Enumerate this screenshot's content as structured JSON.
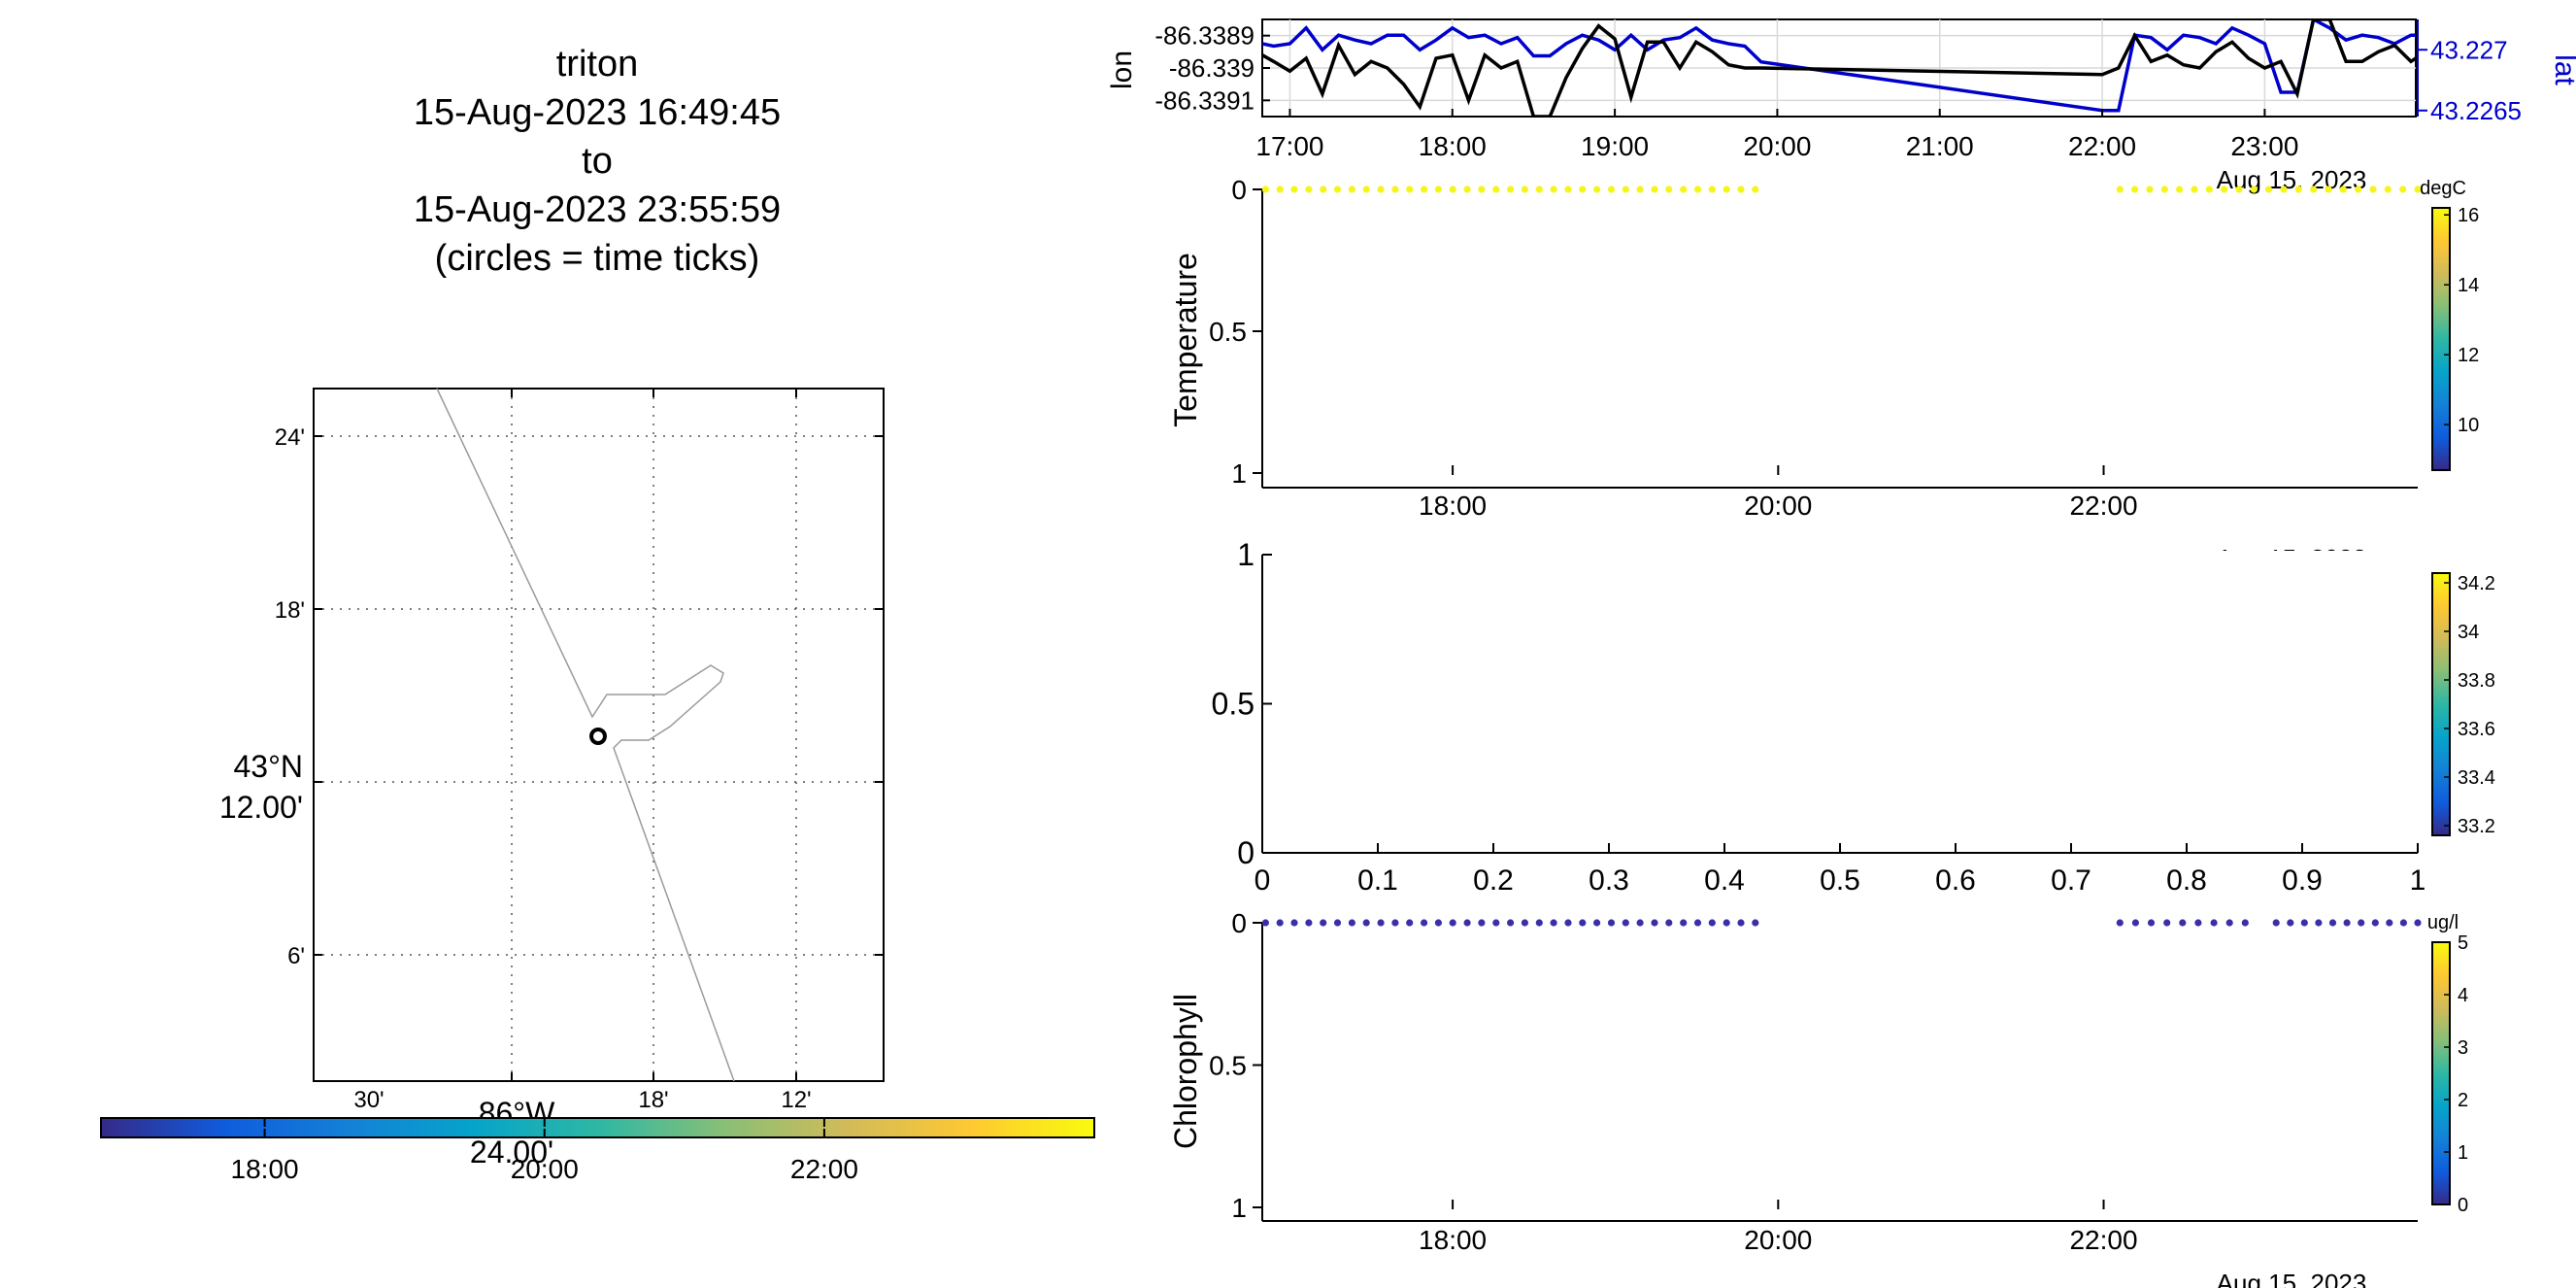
{
  "title": {
    "line1": "triton",
    "line2": "15-Aug-2023 16:49:45",
    "line3": "to",
    "line4": "15-Aug-2023 23:55:59",
    "line5": "(circles = time ticks)"
  },
  "colors": {
    "lon": "#000000",
    "lat": "#0000cc",
    "temperature_dots": "#f5f51a",
    "chlorophyll_dots": "#3b2fa8",
    "parula": [
      "#352a87",
      "#0f5cdd",
      "#1481d6",
      "#06a4ca",
      "#2eb7a4",
      "#87bf77",
      "#d1bb59",
      "#fec832",
      "#f9fb0e"
    ]
  },
  "map": {
    "lat_labels": [
      "24'",
      "18'",
      "43°N",
      "12.00'",
      "6'"
    ],
    "lon_labels": [
      "30'",
      "86°W",
      "24.00'",
      "18'",
      "12'"
    ],
    "colorbar_ticks": [
      "18:00",
      "20:00",
      "22:00"
    ],
    "colorbar_values": [
      18,
      20,
      22
    ],
    "colorbar_range": [
      16.83,
      23.93
    ],
    "time_tick_marker": "circle"
  },
  "chart_data": [
    {
      "id": "position",
      "type": "line",
      "x_unit": "hour of day",
      "xlim": [
        16.83,
        23.93
      ],
      "xticks": [
        "17:00",
        "18:00",
        "19:00",
        "20:00",
        "21:00",
        "22:00",
        "23:00"
      ],
      "xtick_values": [
        17,
        18,
        19,
        20,
        21,
        22,
        23
      ],
      "date_label": "Aug 15, 2023",
      "grid": true,
      "left_axis": {
        "label": "lon",
        "ylim": [
          -86.33915,
          -86.33885
        ],
        "ticks": [
          "-86.3389",
          "-86.339",
          "-86.3391"
        ],
        "tick_values": [
          -86.3389,
          -86.339,
          -86.3391
        ]
      },
      "right_axis": {
        "label": "lat",
        "ylim": [
          43.22645,
          43.22725
        ],
        "ticks": [
          "43.227",
          "43.2265"
        ],
        "tick_values": [
          43.227,
          43.2265
        ]
      },
      "series": [
        {
          "name": "lon",
          "axis": "left",
          "x": [
            16.83,
            16.9,
            17.0,
            17.1,
            17.2,
            17.3,
            17.4,
            17.5,
            17.6,
            17.7,
            17.8,
            17.9,
            18.0,
            18.1,
            18.2,
            18.3,
            18.4,
            18.5,
            18.6,
            18.7,
            18.8,
            18.9,
            19.0,
            19.1,
            19.2,
            19.3,
            19.4,
            19.5,
            19.6,
            19.7,
            19.8,
            19.9,
            22.0,
            22.1,
            22.2,
            22.3,
            22.4,
            22.5,
            22.6,
            22.7,
            22.8,
            22.9,
            23.0,
            23.1,
            23.2,
            23.3,
            23.4,
            23.5,
            23.6,
            23.7,
            23.8,
            23.9,
            23.93
          ],
          "values": [
            -86.33896,
            -86.33898,
            -86.33901,
            -86.33897,
            -86.33908,
            -86.33893,
            -86.33902,
            -86.33898,
            -86.339,
            -86.33905,
            -86.33912,
            -86.33897,
            -86.33896,
            -86.3391,
            -86.33896,
            -86.339,
            -86.33898,
            -86.33915,
            -86.33915,
            -86.33903,
            -86.33894,
            -86.33887,
            -86.33891,
            -86.33909,
            -86.33892,
            -86.33892,
            -86.339,
            -86.33892,
            -86.33895,
            -86.33899,
            -86.339,
            -86.339,
            -86.33902,
            -86.339,
            -86.3389,
            -86.33898,
            -86.33896,
            -86.33899,
            -86.339,
            -86.33895,
            -86.33892,
            -86.33897,
            -86.339,
            -86.33898,
            -86.33908,
            -86.33885,
            -86.33885,
            -86.33898,
            -86.33898,
            -86.33895,
            -86.33893,
            -86.33898,
            -86.33897
          ]
        },
        {
          "name": "lat",
          "axis": "right",
          "x": [
            16.83,
            16.9,
            17.0,
            17.1,
            17.2,
            17.3,
            17.4,
            17.5,
            17.6,
            17.7,
            17.8,
            17.9,
            18.0,
            18.1,
            18.2,
            18.3,
            18.4,
            18.5,
            18.6,
            18.7,
            18.8,
            18.9,
            19.0,
            19.1,
            19.2,
            19.3,
            19.4,
            19.5,
            19.6,
            19.7,
            19.8,
            19.9,
            22.0,
            22.1,
            22.2,
            22.3,
            22.4,
            22.5,
            22.6,
            22.7,
            22.8,
            22.9,
            23.0,
            23.1,
            23.2,
            23.3,
            23.4,
            23.5,
            23.6,
            23.7,
            23.8,
            23.9,
            23.93
          ],
          "values": [
            43.22705,
            43.22703,
            43.22705,
            43.22718,
            43.227,
            43.22712,
            43.22708,
            43.22705,
            43.22712,
            43.22712,
            43.227,
            43.22708,
            43.22718,
            43.2271,
            43.22712,
            43.22705,
            43.2271,
            43.22695,
            43.22695,
            43.22705,
            43.22712,
            43.22708,
            43.227,
            43.22712,
            43.227,
            43.22708,
            43.2271,
            43.22718,
            43.22708,
            43.22705,
            43.22703,
            43.2269,
            43.2265,
            43.2265,
            43.22712,
            43.2271,
            43.227,
            43.22712,
            43.2271,
            43.22705,
            43.22718,
            43.22712,
            43.22705,
            43.22665,
            43.22665,
            43.22725,
            43.22718,
            43.22708,
            43.22712,
            43.2271,
            43.22705,
            43.22712,
            43.22712
          ]
        }
      ]
    },
    {
      "id": "temperature",
      "type": "scatter",
      "ylabel": "Temperature",
      "y_reversed": true,
      "ylim": [
        0,
        1
      ],
      "yticks": [
        "0",
        "0.5",
        "1"
      ],
      "ytick_values": [
        0,
        0.5,
        1
      ],
      "xlim": [
        16.83,
        23.93
      ],
      "xticks": [
        "18:00",
        "20:00",
        "22:00"
      ],
      "xtick_values": [
        18,
        20,
        22
      ],
      "date_label": "Aug 15, 2023",
      "colorbar": {
        "unit": "degC",
        "ticks": [
          "16",
          "14",
          "12",
          "10"
        ],
        "tick_values": [
          16,
          14,
          12,
          10
        ],
        "range": [
          8.7,
          16.2
        ]
      },
      "segments": [
        {
          "x_start": 16.85,
          "x_end": 19.86,
          "depth": 0,
          "count": 35
        },
        {
          "x_start": 22.1,
          "x_end": 23.93,
          "depth": 0,
          "count": 21
        }
      ]
    },
    {
      "id": "salinity",
      "type": "scatter",
      "empty": true,
      "xlim": [
        0,
        1
      ],
      "ylim": [
        0,
        1
      ],
      "xticks": [
        "0",
        "0.1",
        "0.2",
        "0.3",
        "0.4",
        "0.5",
        "0.6",
        "0.7",
        "0.8",
        "0.9",
        "1"
      ],
      "xtick_values": [
        0,
        0.1,
        0.2,
        0.3,
        0.4,
        0.5,
        0.6,
        0.7,
        0.8,
        0.9,
        1
      ],
      "yticks": [
        "1",
        "0.5",
        "0"
      ],
      "ytick_values": [
        1,
        0.5,
        0
      ],
      "colorbar": {
        "unit": "",
        "ticks": [
          "34.2",
          "34",
          "33.8",
          "33.6",
          "33.4",
          "33.2"
        ],
        "tick_values": [
          34.2,
          34,
          33.8,
          33.6,
          33.4,
          33.2
        ],
        "range": [
          33.16,
          34.24
        ]
      }
    },
    {
      "id": "chlorophyll",
      "type": "scatter",
      "ylabel": "Chlorophyll",
      "y_reversed": true,
      "ylim": [
        0,
        1
      ],
      "yticks": [
        "0",
        "0.5",
        "1"
      ],
      "ytick_values": [
        0,
        0.5,
        1
      ],
      "xlim": [
        16.83,
        23.93
      ],
      "xticks": [
        "18:00",
        "20:00",
        "22:00"
      ],
      "xtick_values": [
        18,
        20,
        22
      ],
      "date_label": "Aug 15, 2023",
      "colorbar": {
        "unit": "ug/l",
        "ticks": [
          "5",
          "4",
          "3",
          "2",
          "1",
          "0"
        ],
        "tick_values": [
          5,
          4,
          3,
          2,
          1,
          0
        ],
        "range": [
          0,
          5
        ]
      },
      "segments": [
        {
          "x_start": 16.85,
          "x_end": 19.86,
          "depth": 0,
          "count": 35
        },
        {
          "x_start": 22.1,
          "x_end": 22.87,
          "depth": 0,
          "count": 9
        },
        {
          "x_start": 23.06,
          "x_end": 23.93,
          "depth": 0,
          "count": 11
        }
      ]
    }
  ]
}
